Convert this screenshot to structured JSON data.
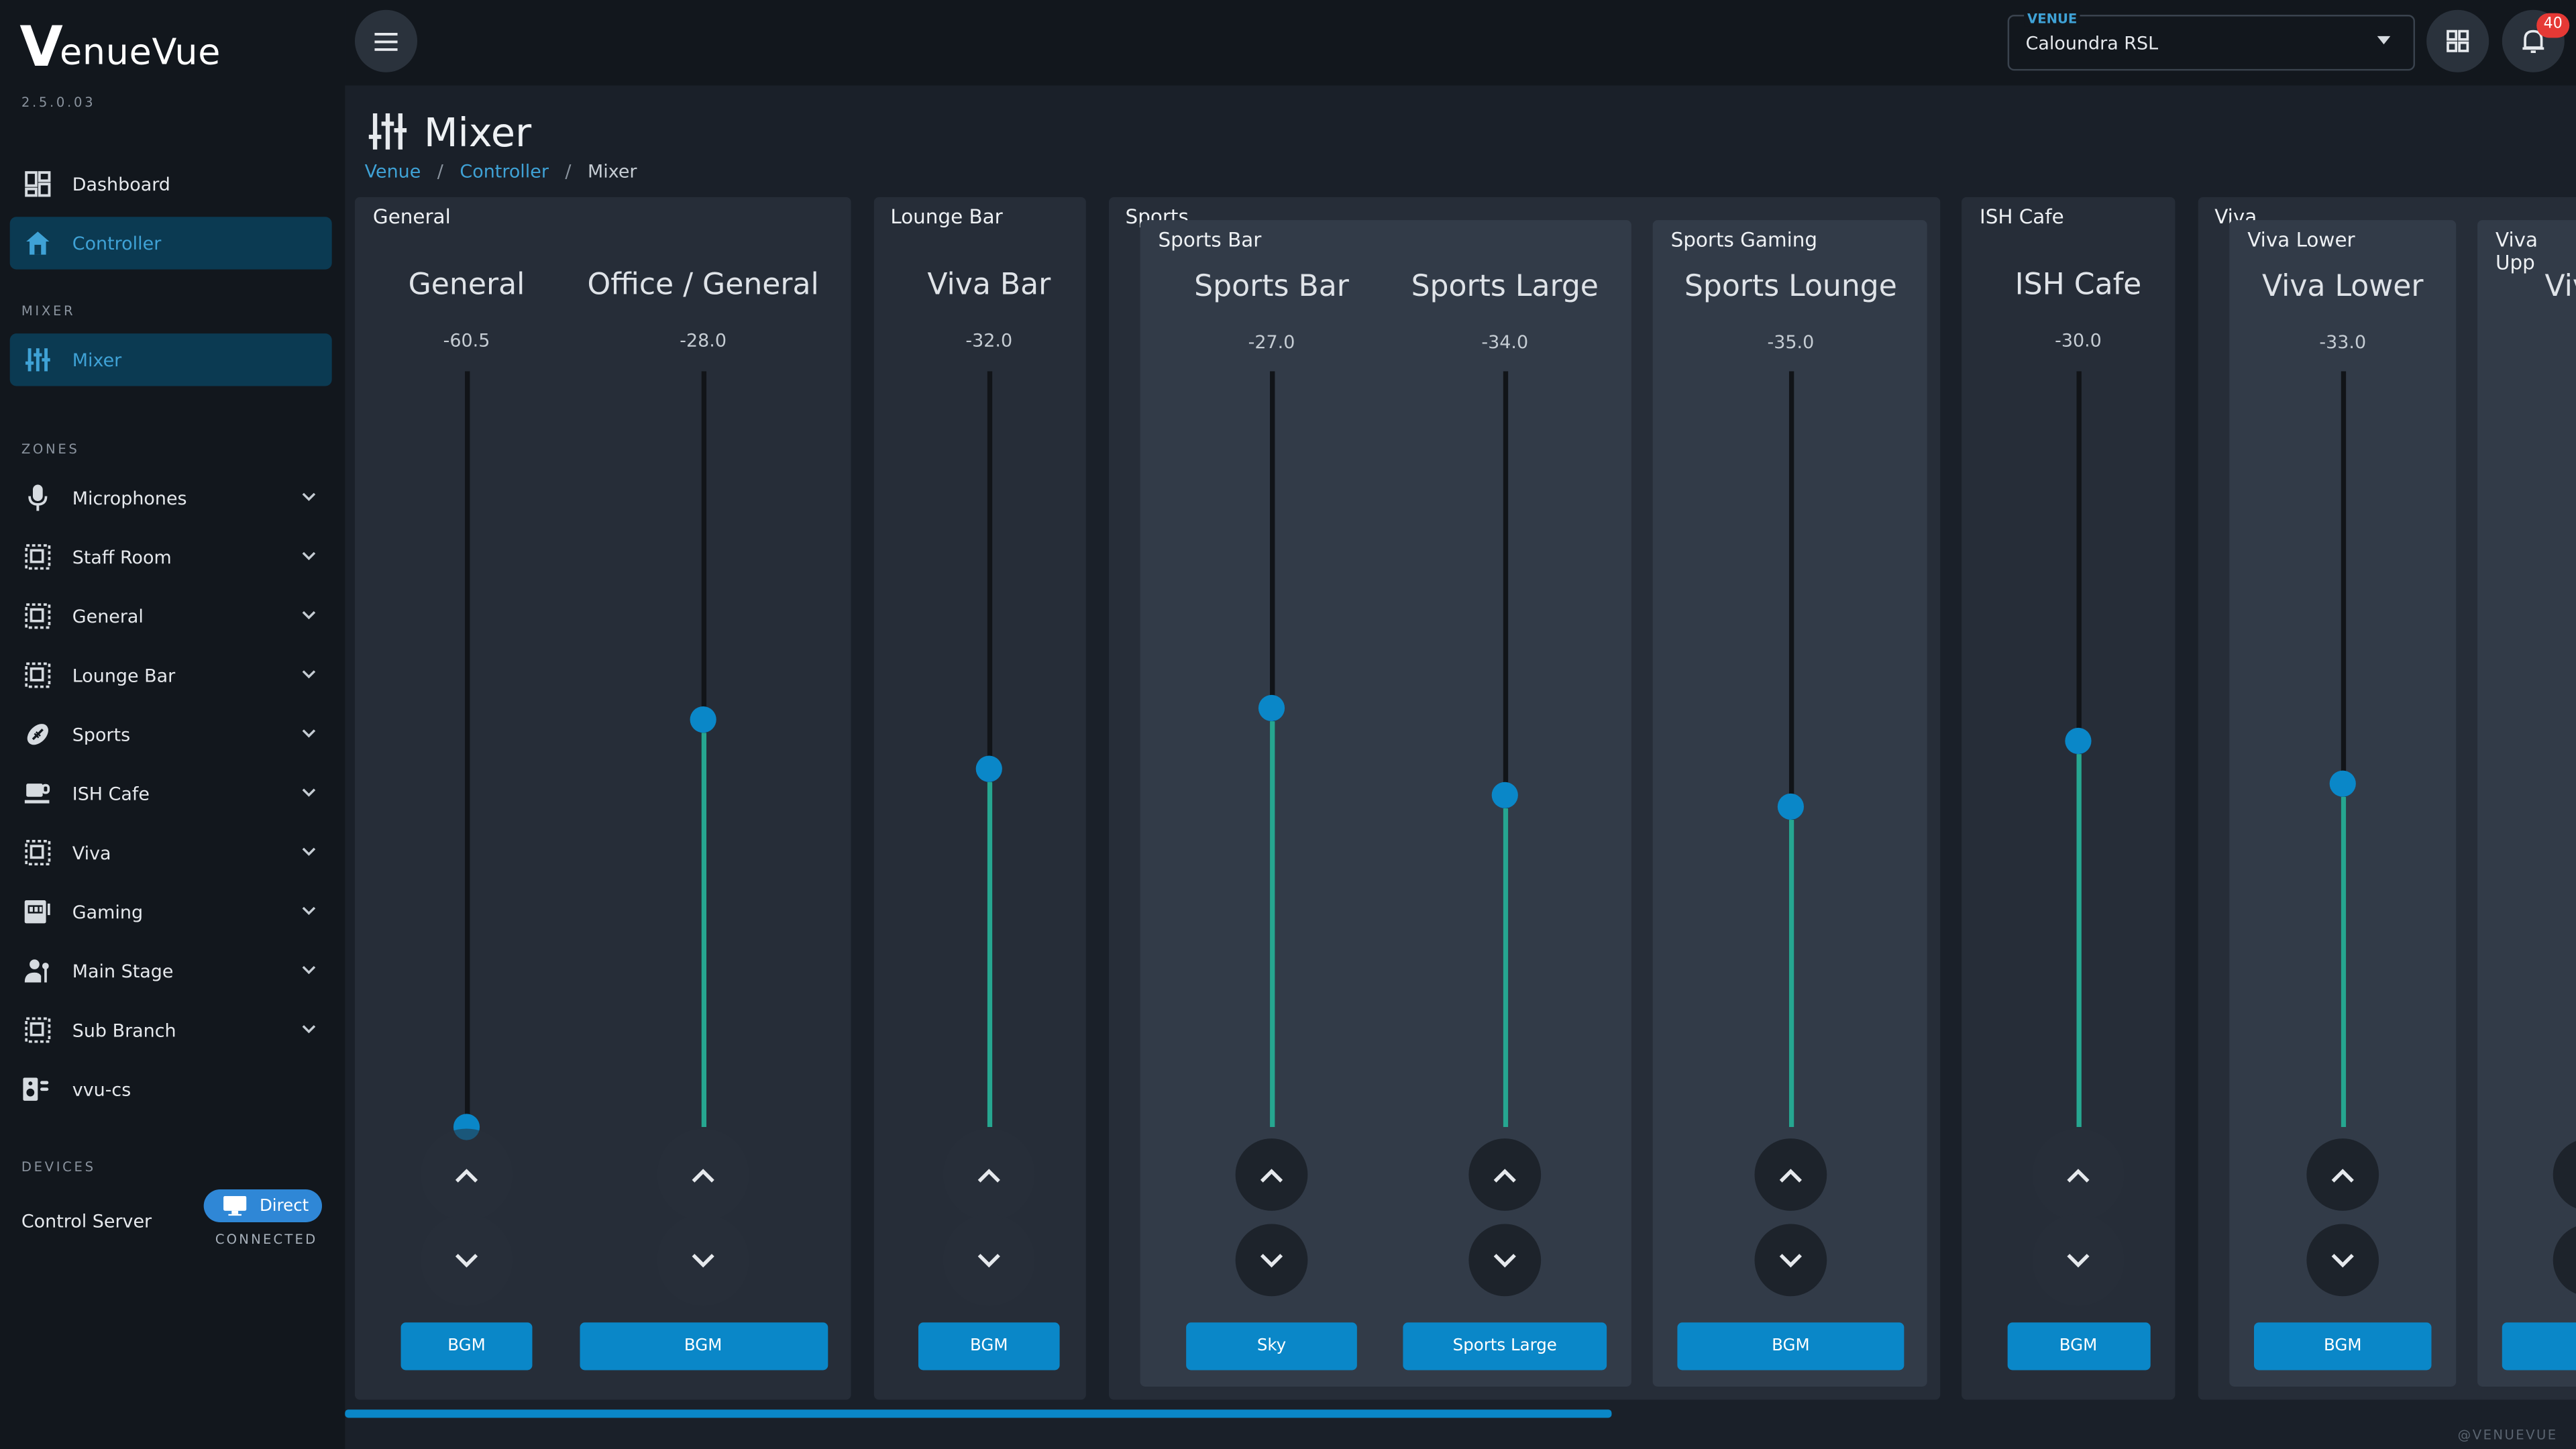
{
  "app": {
    "logo_v": "V",
    "logo_rest": "enueVue",
    "version": "2.5.0.03"
  },
  "nav": {
    "dashboard": "Dashboard",
    "controller": "Controller",
    "mixer_section": "MIXER",
    "mixer": "Mixer",
    "zones_section": "ZONES",
    "zones": [
      "Microphones",
      "Staff Room",
      "General",
      "Lounge Bar",
      "Sports",
      "ISH Cafe",
      "Viva",
      "Gaming",
      "Main Stage",
      "Sub Branch",
      "vvu-cs"
    ],
    "devices_section": "DEVICES",
    "control_server": "Control Server",
    "direct": "Direct",
    "connected": "CONNECTED"
  },
  "topbar": {
    "venue_label": "VENUE",
    "venue_value": "Caloundra RSL",
    "notification_count": "40"
  },
  "page": {
    "title": "Mixer",
    "breadcrumb": [
      "Venue",
      "Controller",
      "Mixer"
    ]
  },
  "zones": {
    "general": "General",
    "lounge_bar": "Lounge Bar",
    "sports": "Sports",
    "sports_bar": "Sports Bar",
    "sports_gaming": "Sports Gaming",
    "ish_cafe": "ISH Cafe",
    "viva": "Viva",
    "viva_lower": "Viva Lower",
    "viva_upper": "Viva Upp"
  },
  "channels": [
    {
      "name": "General",
      "value": "-60.5",
      "level": 0.0,
      "source": "BGM"
    },
    {
      "name": "Office / General",
      "value": "-28.0",
      "level": 0.54,
      "source": "BGM"
    },
    {
      "name": "Viva Bar",
      "value": "-32.0",
      "level": 0.475,
      "source": "BGM"
    },
    {
      "name": "Sports Bar",
      "value": "-27.0",
      "level": 0.555,
      "source": "Sky"
    },
    {
      "name": "Sports Large",
      "value": "-34.0",
      "level": 0.44,
      "source": "Sports Large"
    },
    {
      "name": "Sports Lounge",
      "value": "-35.0",
      "level": 0.425,
      "source": "BGM"
    },
    {
      "name": "ISH Cafe",
      "value": "-30.0",
      "level": 0.51,
      "source": "BGM"
    },
    {
      "name": "Viva Lower",
      "value": "-33.0",
      "level": 0.455,
      "source": "BGM"
    },
    {
      "name": "Viva"
    }
  ],
  "footer": "@VENUEVUE",
  "colors": {
    "accent": "#0a87c8",
    "meter": "#26a690",
    "active_nav_bg": "#0b3a52",
    "badge": "#e53935"
  }
}
